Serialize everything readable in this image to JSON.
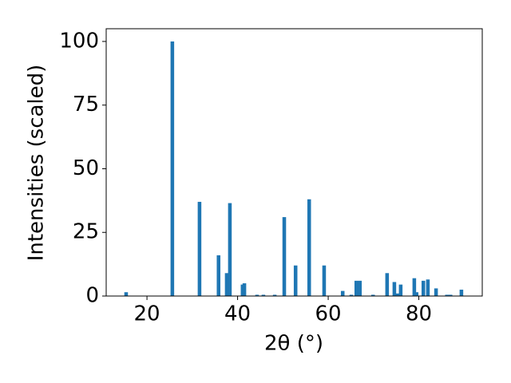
{
  "chart_data": {
    "type": "bar",
    "xlabel": "2θ (°)",
    "ylabel": "Intensities (scaled)",
    "x": [
      15.4,
      25.6,
      31.6,
      35.8,
      37.6,
      38.3,
      41.1,
      41.5,
      44.3,
      45.7,
      48.2,
      50.3,
      52.8,
      55.8,
      59.1,
      63.2,
      65.1,
      66.2,
      67.0,
      69.9,
      73.0,
      74.6,
      75.3,
      76.0,
      79.0,
      79.5,
      81.0,
      82.0,
      83.8,
      86.2,
      87.0,
      89.4
    ],
    "values": [
      1.5,
      100,
      37,
      16,
      9,
      36.5,
      4.5,
      5,
      0.5,
      0.5,
      0.5,
      31,
      12,
      38,
      12,
      2,
      0.5,
      6,
      6,
      0.5,
      9,
      5.5,
      1,
      4.5,
      7,
      1.5,
      6,
      6.5,
      3,
      0.5,
      0.5,
      2.5
    ],
    "color": "#1f77b4",
    "xlim": [
      11,
      94
    ],
    "xticks": [
      20,
      40,
      60,
      80
    ],
    "ylim": [
      0,
      105
    ],
    "yticks": [
      0,
      25,
      50,
      75,
      100
    ]
  }
}
